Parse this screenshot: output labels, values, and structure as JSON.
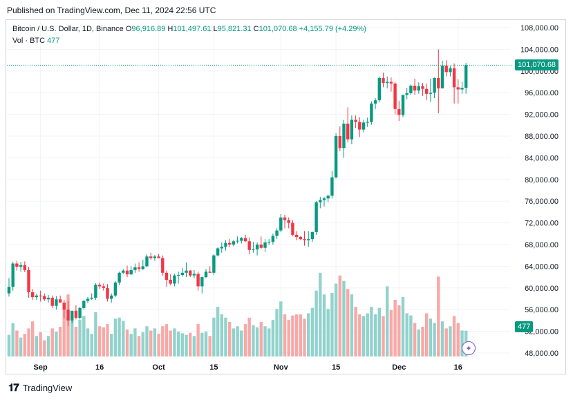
{
  "header": {
    "published": "Published on TradingView.com, Dec 11, 2024 22:56 UTC"
  },
  "legend": {
    "symbol": "Bitcoin / U.S. Dollar, 1D, Binance",
    "open_label": "O",
    "open": "96,916.89",
    "high_label": "H",
    "high": "101,497.61",
    "low_label": "L",
    "low": "95,821.31",
    "close_label": "C",
    "close": "101,070.68",
    "change": "+4,155.79 (+4.29%)",
    "vol_label": "Vol · BTC",
    "vol_value": "477"
  },
  "price_tag": "101,070.68",
  "vol_tag": "477",
  "footer": {
    "brand": "TradingView"
  },
  "colors": {
    "up": "#089981",
    "down": "#f23645",
    "up_vol": "#92d2cc",
    "down_vol": "#f7a9a7",
    "grid": "#f0f3fa"
  },
  "chart_data": {
    "type": "candlestick",
    "y_axis": {
      "min": 48000,
      "max": 108000,
      "ticks": [
        48000,
        52000,
        56000,
        60000,
        64000,
        68000,
        72000,
        76000,
        80000,
        84000,
        88000,
        92000,
        96000,
        100000,
        104000,
        108000
      ],
      "tick_labels": [
        "48,000.00",
        "52,000.00",
        "56,000.00",
        "60,000.00",
        "64,000.00",
        "68,000.00",
        "72,000.00",
        "76,000.00",
        "80,000.00",
        "84,000.00",
        "88,000.00",
        "92,000.00",
        "96,000.00",
        "100,000.00",
        "104,000.00",
        "108,000.00"
      ]
    },
    "x_axis": {
      "labels": [
        {
          "label": "Sep",
          "index": 8
        },
        {
          "label": "16",
          "index": 23
        },
        {
          "label": "Oct",
          "index": 38
        },
        {
          "label": "15",
          "index": 52
        },
        {
          "label": "Nov",
          "index": 69
        },
        {
          "label": "15",
          "index": 83
        },
        {
          "label": "Dec",
          "index": 99
        },
        {
          "label": "16",
          "index": 114
        }
      ]
    },
    "last_close": 101070.68,
    "last_volume": 477,
    "candles": [
      [
        0,
        59000,
        61800,
        58400,
        60200,
        400
      ],
      [
        1,
        60200,
        64800,
        59500,
        64500,
        620
      ],
      [
        2,
        64500,
        65000,
        63200,
        63900,
        480
      ],
      [
        3,
        63900,
        64800,
        63000,
        64200,
        350
      ],
      [
        4,
        64200,
        64900,
        62900,
        63300,
        420
      ],
      [
        5,
        63300,
        63900,
        58200,
        59200,
        520
      ],
      [
        6,
        59200,
        59800,
        57800,
        58300,
        650
      ],
      [
        7,
        58300,
        58900,
        57800,
        58600,
        380
      ],
      [
        8,
        58600,
        59500,
        57500,
        58500,
        450
      ],
      [
        9,
        58500,
        59000,
        57600,
        57900,
        300
      ],
      [
        10,
        57900,
        58700,
        57300,
        58200,
        380
      ],
      [
        11,
        58200,
        58600,
        56300,
        56700,
        520
      ],
      [
        12,
        56700,
        58500,
        56000,
        57900,
        460
      ],
      [
        13,
        57900,
        58600,
        57400,
        57300,
        550
      ],
      [
        14,
        57300,
        57800,
        54500,
        56000,
        980
      ],
      [
        15,
        56000,
        57600,
        53000,
        54000,
        1150
      ],
      [
        16,
        54000,
        55500,
        53500,
        55800,
        820
      ],
      [
        17,
        55800,
        56800,
        54200,
        54500,
        550
      ],
      [
        18,
        54500,
        56500,
        54200,
        56300,
        680
      ],
      [
        19,
        56300,
        57800,
        56000,
        57600,
        750
      ],
      [
        20,
        57600,
        58300,
        57200,
        58000,
        520
      ],
      [
        21,
        58000,
        59000,
        57800,
        58200,
        420
      ],
      [
        22,
        58200,
        60900,
        57800,
        60600,
        820
      ],
      [
        23,
        60600,
        61000,
        59800,
        60300,
        560
      ],
      [
        24,
        60300,
        60800,
        59500,
        60000,
        540
      ],
      [
        25,
        60000,
        60700,
        57500,
        58000,
        600
      ],
      [
        26,
        58000,
        59000,
        57300,
        58600,
        420
      ],
      [
        27,
        58600,
        61300,
        58300,
        61000,
        700
      ],
      [
        28,
        61000,
        63000,
        60500,
        62800,
        720
      ],
      [
        29,
        62800,
        63500,
        62600,
        63200,
        660
      ],
      [
        30,
        63200,
        64100,
        62000,
        62500,
        500
      ],
      [
        31,
        62500,
        64000,
        62400,
        63300,
        420
      ],
      [
        32,
        63300,
        64500,
        62800,
        63800,
        520
      ],
      [
        33,
        63800,
        64700,
        63000,
        63500,
        380
      ],
      [
        34,
        63500,
        65200,
        63300,
        64000,
        450
      ],
      [
        35,
        64000,
        66200,
        63800,
        65800,
        560
      ],
      [
        36,
        65800,
        66500,
        65200,
        65500,
        480
      ],
      [
        37,
        65500,
        66100,
        65000,
        65800,
        520
      ],
      [
        38,
        65800,
        66300,
        65500,
        65500,
        420
      ],
      [
        39,
        65500,
        66000,
        62200,
        62800,
        560
      ],
      [
        40,
        62800,
        63200,
        60200,
        61500,
        600
      ],
      [
        41,
        61500,
        62500,
        60500,
        60800,
        480
      ],
      [
        42,
        60800,
        62600,
        60300,
        62300,
        520
      ],
      [
        43,
        62300,
        63000,
        60800,
        62400,
        460
      ],
      [
        44,
        62400,
        63700,
        62100,
        62800,
        430
      ],
      [
        45,
        62800,
        64700,
        62000,
        63200,
        400
      ],
      [
        46,
        63200,
        63300,
        62000,
        62300,
        440
      ],
      [
        47,
        62300,
        63300,
        61800,
        62600,
        380
      ],
      [
        48,
        62600,
        63000,
        59500,
        60300,
        600
      ],
      [
        49,
        60300,
        62100,
        59000,
        62000,
        440
      ],
      [
        50,
        62000,
        63500,
        61800,
        63000,
        460
      ],
      [
        51,
        63000,
        64000,
        62800,
        62800,
        380
      ],
      [
        52,
        62800,
        66200,
        62400,
        66000,
        720
      ],
      [
        53,
        66000,
        67500,
        65800,
        67300,
        920
      ],
      [
        54,
        67300,
        68400,
        66500,
        67600,
        780
      ],
      [
        55,
        67600,
        68800,
        66900,
        68300,
        720
      ],
      [
        56,
        68300,
        69000,
        67500,
        68000,
        640
      ],
      [
        57,
        68000,
        68900,
        67700,
        68600,
        520
      ],
      [
        58,
        68600,
        69500,
        68200,
        68700,
        560
      ],
      [
        59,
        68700,
        69400,
        68200,
        69200,
        480
      ],
      [
        60,
        69200,
        69800,
        68500,
        68600,
        600
      ],
      [
        61,
        68600,
        69300,
        66200,
        67000,
        720
      ],
      [
        62,
        67000,
        68500,
        66500,
        67100,
        580
      ],
      [
        63,
        67100,
        68400,
        66000,
        68000,
        540
      ],
      [
        64,
        68000,
        69500,
        67200,
        67400,
        640
      ],
      [
        65,
        67400,
        69000,
        66600,
        68400,
        560
      ],
      [
        66,
        68400,
        69000,
        67900,
        68500,
        520
      ],
      [
        67,
        68500,
        70000,
        68000,
        69600,
        680
      ],
      [
        68,
        69600,
        71000,
        69000,
        70600,
        880
      ],
      [
        69,
        70600,
        73600,
        70300,
        73000,
        1020
      ],
      [
        70,
        73000,
        73500,
        71000,
        72500,
        780
      ],
      [
        71,
        72500,
        73000,
        71000,
        72000,
        680
      ],
      [
        72,
        72000,
        72500,
        69500,
        69800,
        760
      ],
      [
        73,
        69800,
        70500,
        68800,
        69400,
        780
      ],
      [
        74,
        69400,
        69600,
        68800,
        69000,
        780
      ],
      [
        75,
        69000,
        70500,
        67800,
        68800,
        700
      ],
      [
        76,
        68800,
        70500,
        67600,
        69000,
        800
      ],
      [
        77,
        69000,
        70400,
        68500,
        70300,
        900
      ],
      [
        78,
        70300,
        76000,
        69800,
        75800,
        1220
      ],
      [
        79,
        75800,
        76800,
        74700,
        76200,
        1550
      ],
      [
        80,
        76200,
        76800,
        75000,
        76500,
        1150
      ],
      [
        81,
        76500,
        77200,
        75800,
        77000,
        880
      ],
      [
        82,
        77000,
        81600,
        76500,
        80400,
        1180
      ],
      [
        83,
        80400,
        88500,
        80200,
        88000,
        1350
      ],
      [
        84,
        88000,
        89800,
        85200,
        85800,
        1500
      ],
      [
        85,
        85800,
        91000,
        84000,
        90300,
        1400
      ],
      [
        86,
        90300,
        93300,
        86800,
        87400,
        1250
      ],
      [
        87,
        87400,
        91800,
        86500,
        91000,
        1150
      ],
      [
        88,
        91000,
        91800,
        89500,
        90600,
        920
      ],
      [
        89,
        90600,
        91500,
        87800,
        89200,
        780
      ],
      [
        90,
        89200,
        91000,
        88700,
        90500,
        750
      ],
      [
        91,
        90500,
        91400,
        89700,
        90600,
        800
      ],
      [
        92,
        90600,
        94400,
        90100,
        94000,
        920
      ],
      [
        93,
        94000,
        95000,
        93000,
        94600,
        780
      ],
      [
        94,
        94600,
        99000,
        94200,
        98700,
        900
      ],
      [
        95,
        98700,
        99700,
        97000,
        97800,
        750
      ],
      [
        96,
        97800,
        99000,
        96800,
        98000,
        1300
      ],
      [
        97,
        98000,
        98800,
        96200,
        97700,
        860
      ],
      [
        98,
        97700,
        98000,
        92000,
        93000,
        1050
      ],
      [
        99,
        93000,
        94500,
        90800,
        91900,
        950
      ],
      [
        100,
        91900,
        95500,
        91500,
        95600,
        1100
      ],
      [
        101,
        95600,
        96900,
        94800,
        95900,
        800
      ],
      [
        102,
        95900,
        97500,
        95600,
        97300,
        760
      ],
      [
        103,
        97300,
        98600,
        95600,
        96400,
        620
      ],
      [
        104,
        96400,
        97900,
        95800,
        97200,
        500
      ],
      [
        105,
        97200,
        97800,
        95400,
        96700,
        550
      ],
      [
        106,
        96700,
        97700,
        94600,
        95800,
        800
      ],
      [
        107,
        95800,
        98600,
        94300,
        96000,
        700
      ],
      [
        108,
        96000,
        98800,
        95000,
        98700,
        620
      ],
      [
        109,
        98700,
        104000,
        92200,
        96800,
        1480
      ],
      [
        110,
        96800,
        101900,
        96800,
        101000,
        650
      ],
      [
        111,
        101000,
        102000,
        99000,
        99800,
        520
      ],
      [
        112,
        99800,
        101000,
        99000,
        100500,
        560
      ],
      [
        113,
        100500,
        101400,
        94000,
        97000,
        750
      ],
      [
        114,
        97000,
        98500,
        94000,
        96600,
        620
      ],
      [
        115,
        96600,
        98000,
        95800,
        96900,
        480
      ],
      [
        116,
        96916.89,
        101497.61,
        95821.31,
        101070.68,
        477
      ]
    ]
  }
}
